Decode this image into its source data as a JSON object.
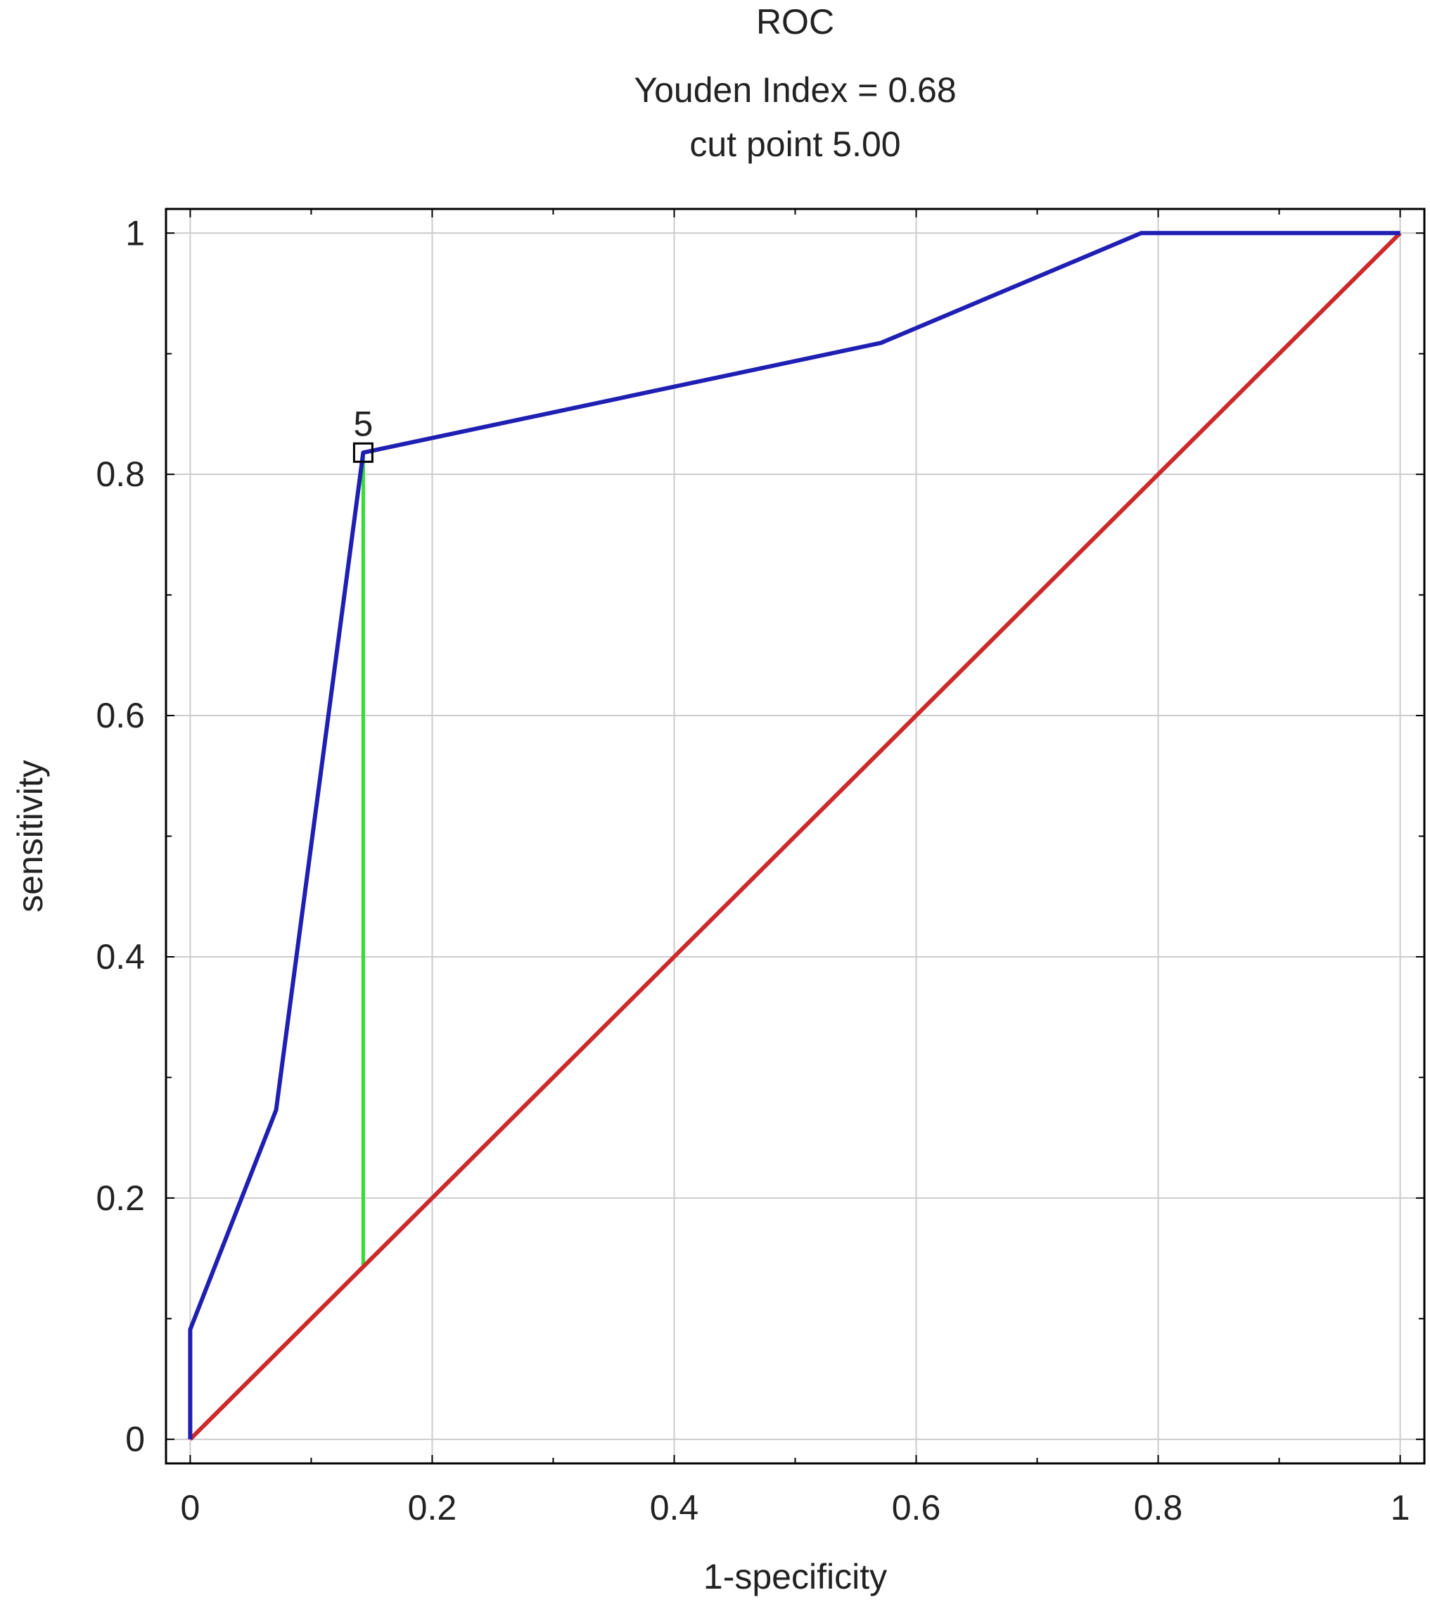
{
  "chart_data": {
    "type": "line",
    "title": "ROC",
    "subtitle_lines": [
      "Youden Index  = 0.68",
      "cut point 5.00"
    ],
    "xlabel": "1-specificity",
    "ylabel": "sensitivity",
    "xlim": [
      -0.02,
      1.02
    ],
    "ylim": [
      -0.02,
      1.02
    ],
    "grid": true,
    "x_ticks": [
      0,
      0.2,
      0.4,
      0.6,
      0.8,
      1
    ],
    "x_tick_labels": [
      "0",
      "0.2",
      "0.4",
      "0.6",
      "0.8",
      "1"
    ],
    "y_ticks": [
      0,
      0.2,
      0.4,
      0.6,
      0.8,
      1
    ],
    "y_tick_labels": [
      "0",
      "0.2",
      "0.4",
      "0.6",
      "0.8",
      "1"
    ],
    "series": [
      {
        "role": "roc_curve",
        "color": "#1f1fb4",
        "x": [
          0,
          0,
          0.071,
          0.143,
          0.143,
          0.571,
          0.786,
          1
        ],
        "y": [
          0,
          0.091,
          0.273,
          0.818,
          0.818,
          0.909,
          1,
          1
        ]
      },
      {
        "role": "reference_diagonal",
        "color": "#cc2a2a",
        "x": [
          0,
          1
        ],
        "y": [
          0,
          1
        ]
      }
    ],
    "youden": {
      "x": 0.143,
      "y_low": 0.143,
      "y_high": 0.818,
      "color": "#33dd33"
    },
    "cut_marker": {
      "label": "5",
      "x": 0.143,
      "y": 0.818
    }
  }
}
